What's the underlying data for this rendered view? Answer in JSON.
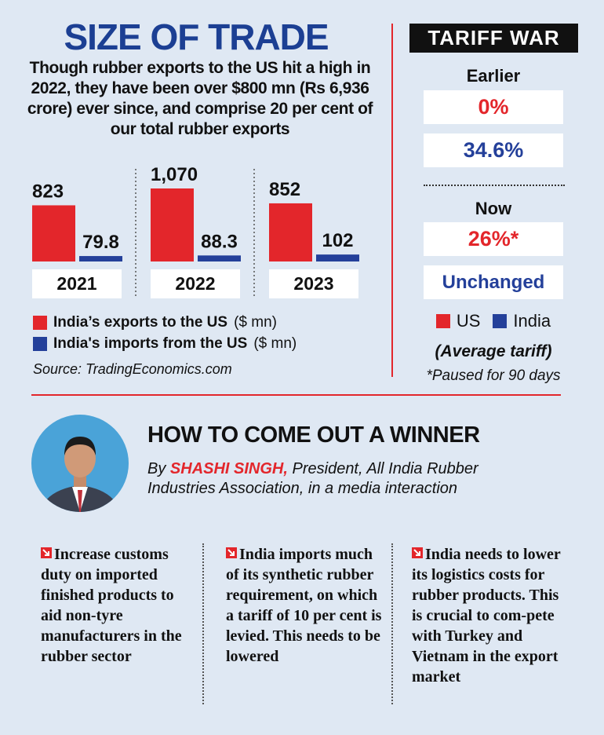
{
  "chart_data": {
    "type": "bar",
    "title": "SIZE OF TRADE",
    "subtitle": "Though rubber exports to the US hit a high in 2022, they have been over $800 mn (Rs 6,936 crore) ever since, and comprise 20 per cent of our total rubber exports",
    "categories": [
      "2021",
      "2022",
      "2023"
    ],
    "unit": "($ mn)",
    "series": [
      {
        "name": "India’s exports to the US",
        "color": "#e3262b",
        "values": [
          823,
          1070,
          852
        ],
        "value_labels": [
          "823",
          "1,070",
          "852"
        ]
      },
      {
        "name": "India's imports from the US",
        "color": "#24409a",
        "values": [
          79.8,
          88.3,
          102
        ]
      }
    ],
    "source": "Source: TradingEconomics.com"
  },
  "tariff_war": {
    "title": "TARIFF WAR",
    "earlier": {
      "label": "Earlier",
      "us": "0%",
      "india": "34.6%"
    },
    "now": {
      "label": "Now",
      "us": "26%*",
      "india": "Unchanged"
    },
    "legend": [
      "US",
      "India"
    ],
    "caption": "(Average tariff)",
    "footnote": "*Paused for 90 days"
  },
  "article": {
    "title": "HOW TO COME OUT A WINNER",
    "byline_prefix": "By",
    "author": "SHASHI SINGH,",
    "byline_rest": "President, All India Rubber Industries Association, in a media interaction",
    "points": [
      "Increase customs duty on imported finished products to aid non-tyre manufacturers in the rubber sector",
      "India imports much of its synthetic rubber requirement, on which a tariff of 10 per cent is levied. This needs to be lowered",
      "India needs to lower its logistics costs for rubber products. This is crucial to com-pete with Turkey and Vietnam in the export market"
    ]
  }
}
